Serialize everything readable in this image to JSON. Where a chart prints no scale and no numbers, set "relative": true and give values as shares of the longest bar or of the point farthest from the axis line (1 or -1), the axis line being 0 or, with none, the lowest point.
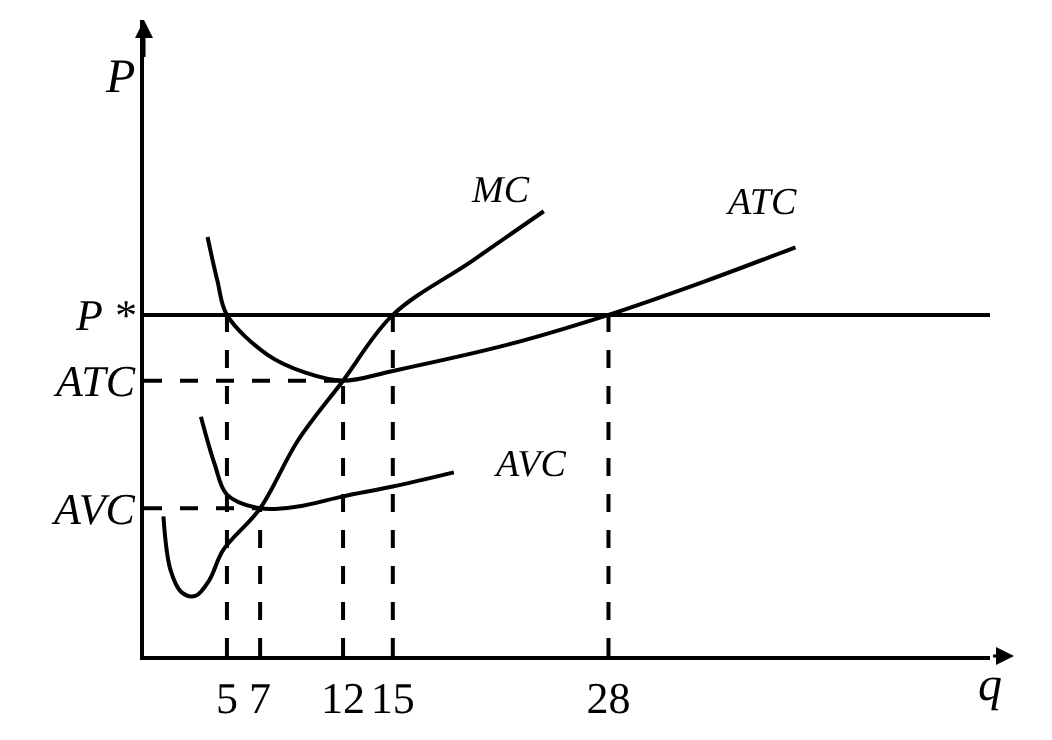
{
  "chart_data": {
    "type": "line",
    "relative": true,
    "xlabel": "q",
    "ylabel": "P",
    "xlim": [
      0,
      51
    ],
    "xticks": [
      5,
      7,
      12,
      15,
      28
    ],
    "legend": false,
    "marker": "none",
    "series": [
      {
        "name": "MC",
        "color": "#000000",
        "line_style": "solid",
        "x": [
          1.17,
          1.6,
          2.27,
          3.1,
          3.93,
          4.77,
          7,
          9.27,
          12,
          15,
          19.77,
          24.1
        ],
        "values": [
          0.314,
          0.193,
          0.143,
          0.135,
          0.17,
          0.238,
          0.332,
          0.484,
          0.619,
          0.767,
          0.888,
          1
        ]
      },
      {
        "name": "ATC",
        "color": "#000000",
        "line_style": "solid",
        "x": [
          3.83,
          4.43,
          5,
          7.45,
          9.73,
          12,
          15,
          21.93,
          28,
          33.85,
          39.27
        ],
        "values": [
          0.942,
          0.843,
          0.767,
          0.677,
          0.637,
          0.619,
          0.641,
          0.7,
          0.767,
          0.843,
          0.919
        ]
      },
      {
        "name": "AVC",
        "color": "#000000",
        "line_style": "solid",
        "x": [
          3.43,
          4.27,
          5,
          7,
          9.27,
          12,
          15,
          18.68
        ],
        "values": [
          0.538,
          0.43,
          0.363,
          0.332,
          0.336,
          0.359,
          0.381,
          0.413
        ]
      },
      {
        "color": "#000000",
        "line_style": "dashed",
        "x": [
          0,
          12
        ],
        "values": [
          0.619,
          0.619
        ]
      },
      {
        "color": "#000000",
        "line_style": "dashed",
        "x": [
          0,
          7
        ],
        "values": [
          0.332,
          0.332
        ]
      },
      {
        "color": "#000000",
        "line_style": "dashed",
        "x": [
          5,
          5
        ],
        "values": [
          0,
          0.767
        ]
      },
      {
        "color": "#000000",
        "line_style": "dashed",
        "x": [
          7,
          7
        ],
        "values": [
          0,
          0.332
        ]
      },
      {
        "color": "#000000",
        "line_style": "dashed",
        "x": [
          12,
          12
        ],
        "values": [
          0,
          0.619
        ]
      },
      {
        "color": "#000000",
        "line_style": "dashed",
        "x": [
          15,
          15
        ],
        "values": [
          0,
          0.767
        ]
      },
      {
        "color": "#000000",
        "line_style": "dashed",
        "x": [
          28,
          28
        ],
        "values": [
          0,
          0.767
        ]
      }
    ],
    "ref_lines": [
      {
        "axis": "y",
        "value": 0.767,
        "label": "P *",
        "color": "#000000",
        "line_style": "solid"
      }
    ],
    "annotations": [
      {
        "text": "ATC",
        "x": 0,
        "y": 0.619
      },
      {
        "text": "AVC",
        "x": 0,
        "y": 0.332
      }
    ]
  }
}
